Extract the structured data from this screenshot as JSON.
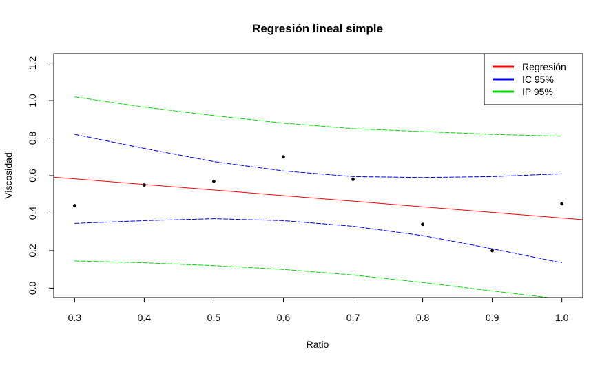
{
  "chart_data": {
    "type": "scatter",
    "title": "Regresión lineal simple",
    "xlabel": "Ratio",
    "ylabel": "Viscosidad",
    "xlim": [
      0.27,
      1.03
    ],
    "ylim": [
      -0.05,
      1.25
    ],
    "x_ticks": [
      "0.3",
      "0.4",
      "0.5",
      "0.6",
      "0.7",
      "0.8",
      "0.9",
      "1.0"
    ],
    "y_ticks": [
      "0.0",
      "0.2",
      "0.4",
      "0.6",
      "0.8",
      "1.0",
      "1.2"
    ],
    "grid": false,
    "legend_position": "top-right",
    "points": {
      "x": [
        0.3,
        0.4,
        0.5,
        0.6,
        0.7,
        0.8,
        0.9,
        1.0
      ],
      "y": [
        0.44,
        0.55,
        0.57,
        0.7,
        0.58,
        0.34,
        0.2,
        0.45
      ]
    },
    "series": [
      {
        "name": "Regresión",
        "color": "#ff0000",
        "style": "solid",
        "x": [
          0.27,
          1.03
        ],
        "y": [
          0.592,
          0.365
        ]
      },
      {
        "name": "IC 95%",
        "color": "#0000ff",
        "style": "dashed",
        "bands": [
          {
            "x": [
              0.3,
              0.4,
              0.5,
              0.6,
              0.7,
              0.8,
              0.9,
              1.0
            ],
            "y": [
              0.82,
              0.745,
              0.675,
              0.625,
              0.595,
              0.59,
              0.595,
              0.61
            ]
          },
          {
            "x": [
              0.3,
              0.4,
              0.5,
              0.6,
              0.7,
              0.8,
              0.9,
              1.0
            ],
            "y": [
              0.345,
              0.36,
              0.37,
              0.36,
              0.33,
              0.28,
              0.21,
              0.135
            ]
          }
        ]
      },
      {
        "name": "IP 95%",
        "color": "#00dd00",
        "style": "dashed",
        "bands": [
          {
            "x": [
              0.3,
              0.4,
              0.5,
              0.6,
              0.7,
              0.8,
              0.9,
              1.0
            ],
            "y": [
              1.02,
              0.965,
              0.92,
              0.88,
              0.85,
              0.835,
              0.82,
              0.81
            ]
          },
          {
            "x": [
              0.3,
              0.4,
              0.5,
              0.6,
              0.7,
              0.8,
              0.9,
              0.98
            ],
            "y": [
              0.145,
              0.135,
              0.12,
              0.1,
              0.07,
              0.03,
              -0.015,
              -0.05
            ]
          }
        ]
      }
    ]
  }
}
